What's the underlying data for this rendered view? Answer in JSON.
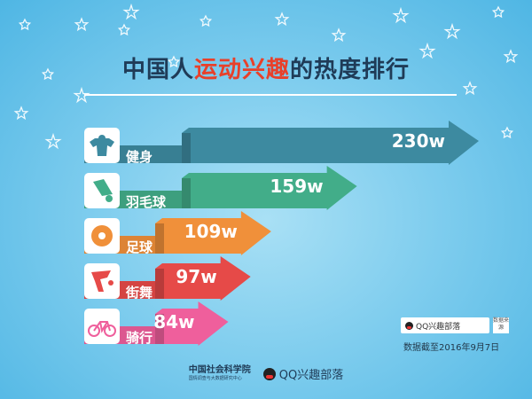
{
  "header": {
    "title_part1": "中国人",
    "title_part2": "运动兴趣",
    "title_part3": "的热度排行"
  },
  "colors": {
    "title_dark": "#1f3b57",
    "title_accent": "#e8402a",
    "background": "#7fcdee",
    "icon_box": "#ffffff"
  },
  "chart_data": {
    "type": "bar",
    "orientation": "horizontal",
    "categories": [
      "健身",
      "羽毛球",
      "足球",
      "街舞",
      "骑行"
    ],
    "values": [
      230,
      159,
      109,
      97,
      84
    ],
    "value_labels": [
      "230w",
      "159w",
      "109w",
      "97w",
      "84w"
    ],
    "icons": [
      "bodybuilder-icon",
      "shuttlecock-icon",
      "football-icon",
      "breakdancer-icon",
      "bicycle-icon"
    ],
    "colors": [
      "#3d8aa0",
      "#42ad89",
      "#f0903a",
      "#e64a48",
      "#ef5f9c"
    ],
    "xlim": [
      0,
      230
    ]
  },
  "source": {
    "box_label": "QQ兴趣部落",
    "tag_label": "数据来源",
    "date_note": "数据截至2016年9月7日"
  },
  "footer": {
    "org_name": "中国社会科学院",
    "org_sub": "国情调查与大数据研究中心",
    "qq_name": "QQ兴趣部落"
  }
}
